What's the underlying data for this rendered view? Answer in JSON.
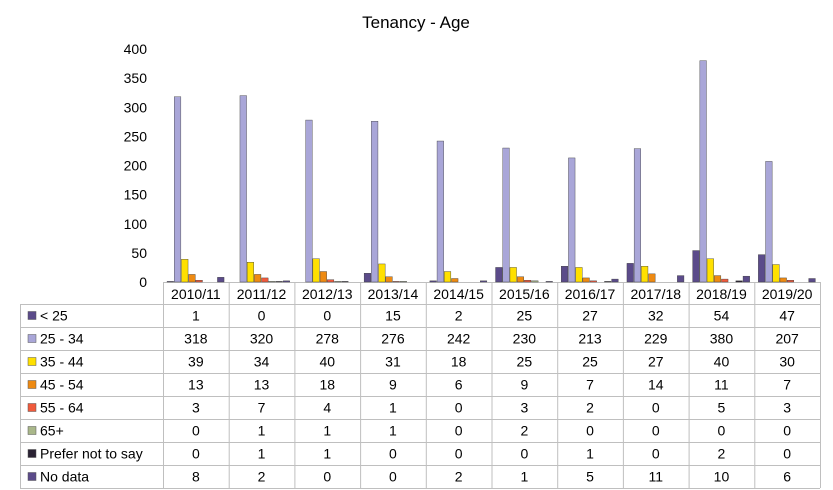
{
  "chart_data": {
    "type": "bar",
    "title": "Tenancy - Age",
    "categories": [
      "2010/11",
      "2011/12",
      "2012/13",
      "2013/14",
      "2014/15",
      "2015/16",
      "2016/17",
      "2017/18",
      "2018/19",
      "2019/20"
    ],
    "ylim": [
      0,
      400
    ],
    "yticks": [
      0,
      50,
      100,
      150,
      200,
      250,
      300,
      350,
      400
    ],
    "grid": false,
    "legend": "data-table-below",
    "series": [
      {
        "name": "< 25",
        "color": "#5b4b8a",
        "values": [
          1,
          0,
          0,
          15,
          2,
          25,
          27,
          32,
          54,
          47
        ]
      },
      {
        "name": "25 - 34",
        "color": "#a9a6d8",
        "values": [
          318,
          320,
          278,
          276,
          242,
          230,
          213,
          229,
          380,
          207
        ]
      },
      {
        "name": "35 - 44",
        "color": "#ffe000",
        "values": [
          39,
          34,
          40,
          31,
          18,
          25,
          25,
          27,
          40,
          30
        ]
      },
      {
        "name": "45 - 54",
        "color": "#ee8a12",
        "values": [
          13,
          13,
          18,
          9,
          6,
          9,
          7,
          14,
          11,
          7
        ]
      },
      {
        "name": "55 - 64",
        "color": "#f05a3c",
        "values": [
          3,
          7,
          4,
          1,
          0,
          3,
          2,
          0,
          5,
          3
        ]
      },
      {
        "name": "65+",
        "color": "#a9b78a",
        "values": [
          0,
          1,
          1,
          1,
          0,
          2,
          0,
          0,
          0,
          0
        ]
      },
      {
        "name": "Prefer not to say",
        "color": "#2a2233",
        "values": [
          0,
          1,
          1,
          0,
          0,
          0,
          1,
          0,
          2,
          0
        ]
      },
      {
        "name": "No data",
        "color": "#5b4b8a",
        "values": [
          8,
          2,
          0,
          0,
          2,
          1,
          5,
          11,
          10,
          6
        ]
      }
    ]
  }
}
